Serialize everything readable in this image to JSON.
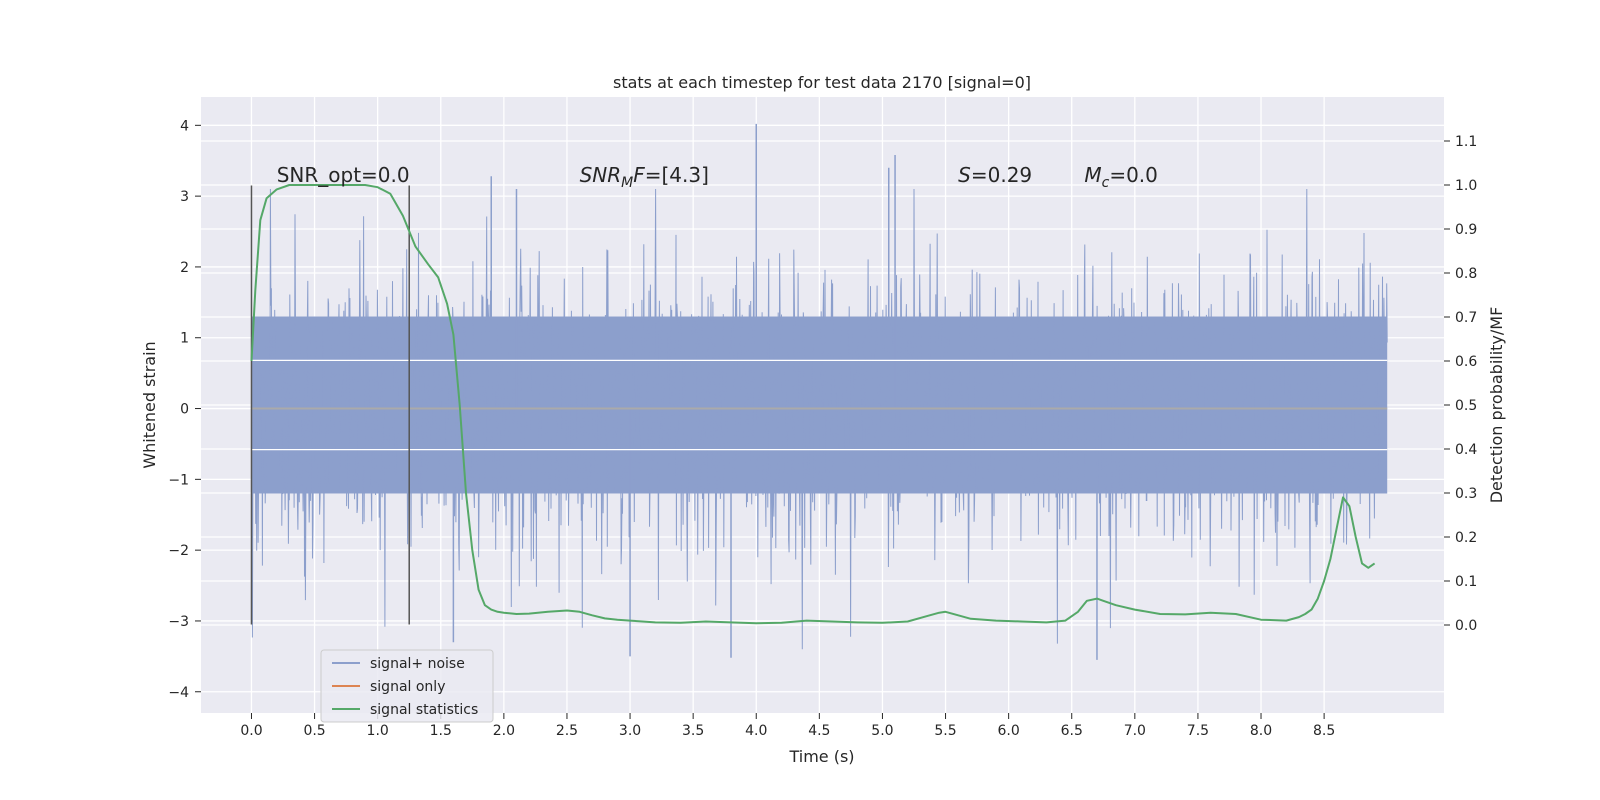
{
  "chart_data": {
    "type": "line",
    "title": "stats at each timestep for test data 2170 [signal=0]",
    "xlabel": "Time (s)",
    "ylabel_left": "Whitened strain",
    "ylabel_right": "Detection probability/MF",
    "xlim": [
      -0.4,
      9.45
    ],
    "ylim_left": [
      -4.3,
      4.4
    ],
    "ylim_right": [
      -0.2,
      1.2
    ],
    "xticks": [
      "0.0",
      "0.5",
      "1.0",
      "1.5",
      "2.0",
      "2.5",
      "3.0",
      "3.5",
      "4.0",
      "4.5",
      "5.0",
      "5.5",
      "6.0",
      "6.5",
      "7.0",
      "7.5",
      "8.0",
      "8.5"
    ],
    "xtick_values": [
      0,
      0.5,
      1,
      1.5,
      2,
      2.5,
      3,
      3.5,
      4,
      4.5,
      5,
      5.5,
      6,
      6.5,
      7,
      7.5,
      8,
      8.5
    ],
    "yticks_left": [
      "−4",
      "−3",
      "−2",
      "−1",
      "0",
      "1",
      "2",
      "3",
      "4"
    ],
    "ytick_values_left": [
      -4,
      -3,
      -2,
      -1,
      0,
      1,
      2,
      3,
      4
    ],
    "yticks_right": [
      "0.0",
      "0.1",
      "0.2",
      "0.3",
      "0.4",
      "0.5",
      "0.6",
      "0.7",
      "0.8",
      "0.9",
      "1.0",
      "1.1"
    ],
    "ytick_values_right": [
      0,
      0.1,
      0.2,
      0.3,
      0.4,
      0.5,
      0.6,
      0.7,
      0.8,
      0.9,
      1.0,
      1.1
    ],
    "grid": true,
    "legend_placement": "lower-left",
    "series": [
      {
        "name": "signal+ noise",
        "axis": "left",
        "color": "#8c9fcc",
        "kind": "noise",
        "x_range": [
          0.0,
          9.0
        ],
        "noise_std": 0.95,
        "band_max": 1.3,
        "band_min": -1.2,
        "peak_values": [
          [
            4.0,
            4.02
          ],
          [
            5.1,
            3.58
          ],
          [
            5.05,
            3.4
          ],
          [
            1.9,
            3.28
          ],
          [
            2.1,
            3.1
          ],
          [
            3.0,
            -3.5
          ],
          [
            3.8,
            -3.52
          ],
          [
            6.7,
            -3.55
          ],
          [
            1.6,
            -3.3
          ]
        ]
      },
      {
        "name": "signal only",
        "axis": "left",
        "color": "#dd8452",
        "x": [
          0.0,
          9.0
        ],
        "y": [
          0.0,
          0.0
        ]
      },
      {
        "name": "signal statistics",
        "axis": "right",
        "color": "#55a868",
        "x": [
          0.0,
          0.03,
          0.07,
          0.12,
          0.2,
          0.3,
          0.5,
          0.7,
          0.9,
          1.0,
          1.1,
          1.2,
          1.3,
          1.4,
          1.48,
          1.55,
          1.6,
          1.65,
          1.7,
          1.75,
          1.8,
          1.85,
          1.9,
          1.95,
          2.0,
          2.1,
          2.2,
          2.35,
          2.5,
          2.6,
          2.7,
          2.8,
          2.9,
          3.0,
          3.2,
          3.4,
          3.6,
          3.8,
          4.0,
          4.2,
          4.4,
          4.6,
          4.8,
          5.0,
          5.2,
          5.35,
          5.45,
          5.5,
          5.6,
          5.7,
          5.9,
          6.1,
          6.3,
          6.45,
          6.55,
          6.62,
          6.7,
          6.75,
          6.85,
          7.0,
          7.2,
          7.4,
          7.6,
          7.8,
          8.0,
          8.2,
          8.3,
          8.35,
          8.4,
          8.45,
          8.5,
          8.55,
          8.6,
          8.65,
          8.7,
          8.75,
          8.8,
          8.85,
          8.9
        ],
        "y": [
          0.6,
          0.76,
          0.92,
          0.97,
          0.99,
          1.0,
          1.0,
          1.0,
          1.0,
          0.995,
          0.98,
          0.93,
          0.86,
          0.82,
          0.79,
          0.73,
          0.66,
          0.5,
          0.3,
          0.17,
          0.08,
          0.045,
          0.035,
          0.03,
          0.028,
          0.025,
          0.026,
          0.03,
          0.033,
          0.03,
          0.022,
          0.015,
          0.012,
          0.01,
          0.006,
          0.005,
          0.008,
          0.006,
          0.004,
          0.005,
          0.01,
          0.008,
          0.006,
          0.005,
          0.008,
          0.02,
          0.028,
          0.03,
          0.022,
          0.014,
          0.01,
          0.008,
          0.006,
          0.01,
          0.03,
          0.055,
          0.06,
          0.055,
          0.045,
          0.035,
          0.025,
          0.024,
          0.028,
          0.025,
          0.012,
          0.01,
          0.018,
          0.025,
          0.035,
          0.06,
          0.1,
          0.15,
          0.22,
          0.29,
          0.27,
          0.2,
          0.14,
          0.13,
          0.14
        ]
      }
    ],
    "vertical_markers": [
      {
        "x": 0.0,
        "y_range": [
          -3.05,
          3.15
        ],
        "color": "#555555"
      },
      {
        "x": 1.25,
        "y_range": [
          -3.05,
          3.15
        ],
        "color": "#555555"
      }
    ],
    "horizontal_lines_left": [
      {
        "y": 0.68,
        "color": "#ffffff"
      },
      {
        "y": -0.58,
        "color": "#ffffff"
      }
    ],
    "annotations": [
      {
        "text": "SNR_opt=0.0",
        "italic": false,
        "x": 0.2,
        "y": 3.2
      },
      {
        "text": "SNR",
        "sub": "M",
        "tail": "F=[4.3]",
        "italic": true,
        "x": 2.6,
        "y": 3.2
      },
      {
        "text": "S",
        "tail": "=0.29",
        "italic": true,
        "x": 5.6,
        "y": 3.2
      },
      {
        "text": "M",
        "sub": "c",
        "tail": "=0.0",
        "italic": true,
        "x": 6.6,
        "y": 3.2
      }
    ]
  },
  "legend": [
    {
      "label": "signal+ noise",
      "color": "#8c9fcc"
    },
    {
      "label": "signal only",
      "color": "#dd8452"
    },
    {
      "label": "signal statistics",
      "color": "#55a868"
    }
  ]
}
